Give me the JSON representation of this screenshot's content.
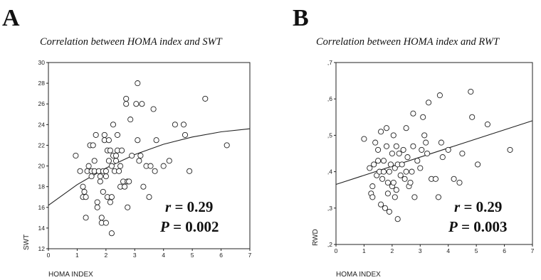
{
  "figure": {
    "panel_a": {
      "letter": "A",
      "title": "Correlation between HOMA index and SWT"
    },
    "panel_b": {
      "letter": "B",
      "title": "Correlation between HOMA index and RWT"
    }
  },
  "chart_data": [
    {
      "type": "scatter",
      "title": "Correlation between HOMA index and SWT",
      "xlabel": "HOMA INDEX",
      "ylabel": "SWT",
      "xlim": [
        0,
        7
      ],
      "ylim": [
        12,
        30
      ],
      "xticks": [
        "0",
        "1",
        "2",
        "3",
        "4",
        "5",
        "6",
        "7"
      ],
      "yticks": [
        "12",
        "14",
        "16",
        "18",
        "20",
        "22",
        "24",
        "26",
        "28",
        "30"
      ],
      "grid": false,
      "stats": {
        "r_symbol": "r",
        "r_text": " = 0.29",
        "p_symbol": "P",
        "p_text": " = 0.002"
      },
      "fit_curve": {
        "x": [
          0,
          1,
          2,
          3,
          4,
          5,
          6,
          7
        ],
        "y": [
          16.2,
          18.2,
          19.8,
          21.1,
          22.1,
          22.8,
          23.3,
          23.6
        ]
      },
      "points": [
        [
          0.95,
          21.0
        ],
        [
          1.1,
          19.5
        ],
        [
          1.2,
          17.0
        ],
        [
          1.25,
          17.5
        ],
        [
          1.2,
          18.0
        ],
        [
          1.3,
          15.0
        ],
        [
          1.3,
          17.0
        ],
        [
          1.35,
          19.5
        ],
        [
          1.4,
          20.0
        ],
        [
          1.45,
          22.0
        ],
        [
          1.5,
          19.0
        ],
        [
          1.5,
          19.5
        ],
        [
          1.55,
          22.0
        ],
        [
          1.6,
          20.5
        ],
        [
          1.6,
          19.5
        ],
        [
          1.65,
          23.0
        ],
        [
          1.7,
          16.5
        ],
        [
          1.7,
          16.0
        ],
        [
          1.75,
          19.5
        ],
        [
          1.8,
          18.5
        ],
        [
          1.8,
          19.0
        ],
        [
          1.85,
          15.0
        ],
        [
          1.85,
          14.5
        ],
        [
          1.9,
          19.5
        ],
        [
          1.9,
          17.5
        ],
        [
          1.95,
          23.0
        ],
        [
          1.95,
          22.5
        ],
        [
          2.0,
          19.0
        ],
        [
          2.0,
          19.5
        ],
        [
          2.0,
          14.5
        ],
        [
          2.05,
          17.0
        ],
        [
          2.05,
          21.5
        ],
        [
          2.1,
          22.5
        ],
        [
          2.1,
          20.5
        ],
        [
          2.15,
          21.5
        ],
        [
          2.15,
          16.5
        ],
        [
          2.2,
          20.0
        ],
        [
          2.2,
          17.0
        ],
        [
          2.2,
          13.5
        ],
        [
          2.25,
          24.0
        ],
        [
          2.25,
          21.0
        ],
        [
          2.3,
          19.5
        ],
        [
          2.35,
          21.0
        ],
        [
          2.35,
          20.5
        ],
        [
          2.4,
          23.0
        ],
        [
          2.4,
          21.5
        ],
        [
          2.45,
          19.5
        ],
        [
          2.5,
          18.0
        ],
        [
          2.5,
          20.0
        ],
        [
          2.55,
          21.5
        ],
        [
          2.6,
          18.5
        ],
        [
          2.65,
          18.0
        ],
        [
          2.7,
          26.5
        ],
        [
          2.7,
          26.0
        ],
        [
          2.75,
          16.0
        ],
        [
          2.75,
          18.5
        ],
        [
          2.8,
          18.5
        ],
        [
          2.85,
          24.5
        ],
        [
          2.9,
          21.0
        ],
        [
          3.05,
          26.0
        ],
        [
          3.1,
          28.0
        ],
        [
          3.1,
          22.5
        ],
        [
          3.15,
          20.5
        ],
        [
          3.2,
          21.0
        ],
        [
          3.25,
          26.0
        ],
        [
          3.3,
          18.0
        ],
        [
          3.4,
          20.0
        ],
        [
          3.5,
          17.0
        ],
        [
          3.55,
          20.0
        ],
        [
          3.65,
          25.5
        ],
        [
          3.7,
          19.5
        ],
        [
          3.75,
          22.5
        ],
        [
          4.0,
          20.0
        ],
        [
          4.2,
          20.5
        ],
        [
          4.4,
          24.0
        ],
        [
          4.7,
          24.0
        ],
        [
          4.75,
          23.0
        ],
        [
          4.9,
          19.5
        ],
        [
          5.45,
          26.5
        ],
        [
          6.2,
          22.0
        ]
      ]
    },
    {
      "type": "scatter",
      "title": "Correlation between HOMA index and RWT",
      "xlabel": "HOMA INDEX",
      "ylabel": "RWD",
      "xlim": [
        0,
        7
      ],
      "ylim": [
        0.2,
        0.7
      ],
      "xticks": [
        "0",
        "1",
        "2",
        "3",
        "4",
        "5",
        "6",
        "7"
      ],
      "yticks": [
        ",2",
        ",3",
        ",4",
        ",5",
        ",6",
        ",7"
      ],
      "grid": false,
      "stats": {
        "r_symbol": "r",
        "r_text": " = 0.29",
        "p_symbol": "P",
        "p_text": " = 0.003"
      },
      "fit_line": {
        "x": [
          0,
          7
        ],
        "y": [
          0.365,
          0.54
        ]
      },
      "points": [
        [
          1.0,
          0.49
        ],
        [
          1.2,
          0.41
        ],
        [
          1.25,
          0.34
        ],
        [
          1.3,
          0.36
        ],
        [
          1.3,
          0.33
        ],
        [
          1.35,
          0.42
        ],
        [
          1.4,
          0.48
        ],
        [
          1.45,
          0.39
        ],
        [
          1.5,
          0.43
        ],
        [
          1.5,
          0.46
        ],
        [
          1.55,
          0.4
        ],
        [
          1.6,
          0.31
        ],
        [
          1.6,
          0.51
        ],
        [
          1.65,
          0.38
        ],
        [
          1.7,
          0.4
        ],
        [
          1.7,
          0.43
        ],
        [
          1.75,
          0.3
        ],
        [
          1.8,
          0.47
        ],
        [
          1.8,
          0.52
        ],
        [
          1.85,
          0.34
        ],
        [
          1.85,
          0.37
        ],
        [
          1.9,
          0.29
        ],
        [
          1.9,
          0.4
        ],
        [
          1.95,
          0.42
        ],
        [
          2.0,
          0.45
        ],
        [
          2.0,
          0.36
        ],
        [
          2.05,
          0.5
        ],
        [
          2.05,
          0.37
        ],
        [
          2.1,
          0.33
        ],
        [
          2.1,
          0.41
        ],
        [
          2.15,
          0.47
        ],
        [
          2.15,
          0.35
        ],
        [
          2.2,
          0.27
        ],
        [
          2.2,
          0.42
        ],
        [
          2.25,
          0.45
        ],
        [
          2.3,
          0.39
        ],
        [
          2.35,
          0.42
        ],
        [
          2.4,
          0.46
        ],
        [
          2.45,
          0.38
        ],
        [
          2.5,
          0.4
        ],
        [
          2.5,
          0.52
        ],
        [
          2.55,
          0.44
        ],
        [
          2.6,
          0.36
        ],
        [
          2.65,
          0.37
        ],
        [
          2.7,
          0.4
        ],
        [
          2.75,
          0.47
        ],
        [
          2.75,
          0.56
        ],
        [
          2.8,
          0.33
        ],
        [
          2.9,
          0.43
        ],
        [
          3.0,
          0.41
        ],
        [
          3.05,
          0.46
        ],
        [
          3.1,
          0.55
        ],
        [
          3.15,
          0.5
        ],
        [
          3.2,
          0.48
        ],
        [
          3.25,
          0.45
        ],
        [
          3.3,
          0.59
        ],
        [
          3.4,
          0.38
        ],
        [
          3.55,
          0.38
        ],
        [
          3.65,
          0.33
        ],
        [
          3.7,
          0.61
        ],
        [
          3.75,
          0.48
        ],
        [
          3.8,
          0.44
        ],
        [
          4.0,
          0.46
        ],
        [
          4.2,
          0.38
        ],
        [
          4.4,
          0.37
        ],
        [
          4.5,
          0.45
        ],
        [
          4.8,
          0.62
        ],
        [
          4.85,
          0.55
        ],
        [
          5.05,
          0.42
        ],
        [
          5.4,
          0.53
        ],
        [
          6.2,
          0.46
        ]
      ]
    }
  ]
}
